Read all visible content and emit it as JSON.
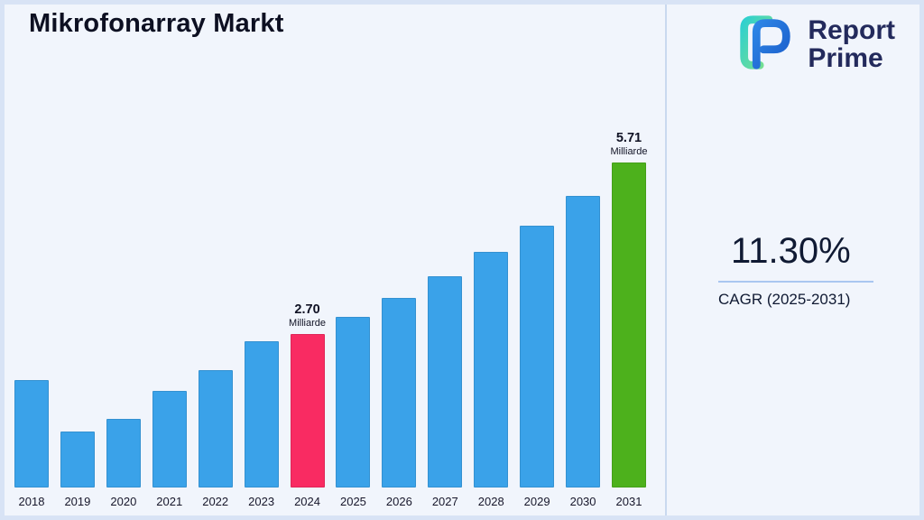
{
  "page": {
    "title": "Mikrofonarray Markt"
  },
  "logo": {
    "line1": "Report",
    "line2": "Prime"
  },
  "stats": {
    "cagr_value": "11.30%",
    "cagr_label": "CAGR (2025-2031)"
  },
  "colors": {
    "background": "#F1F5FC",
    "frame_border": "#D8E3F5",
    "divider": "#C9D9EF",
    "underline": "#A9C6F0",
    "text_dark": "#101A33",
    "logo_navy": "#232A5C"
  },
  "chart_data": {
    "type": "bar",
    "title": "Mikrofonarray Markt",
    "categories": [
      "2018",
      "2019",
      "2020",
      "2021",
      "2022",
      "2023",
      "2024",
      "2025",
      "2026",
      "2027",
      "2028",
      "2029",
      "2030",
      "2031"
    ],
    "values": [
      1.89,
      0.98,
      1.21,
      1.7,
      2.06,
      2.57,
      2.7,
      3.0,
      3.34,
      3.72,
      4.14,
      4.61,
      5.13,
      5.71
    ],
    "unit": "Milliarde",
    "xlabel": "",
    "ylabel": "",
    "ylim": [
      0,
      6
    ],
    "grid": false,
    "legend": false,
    "bar_colors": {
      "default": "#3AA2E9",
      "2024": "#F92B62",
      "2031": "#4DB11C"
    },
    "annotations": [
      {
        "year": "2024",
        "value_label": "2.70",
        "unit_label": "Milliarde"
      },
      {
        "year": "2031",
        "value_label": "5.71",
        "unit_label": "Milliarde"
      }
    ]
  }
}
